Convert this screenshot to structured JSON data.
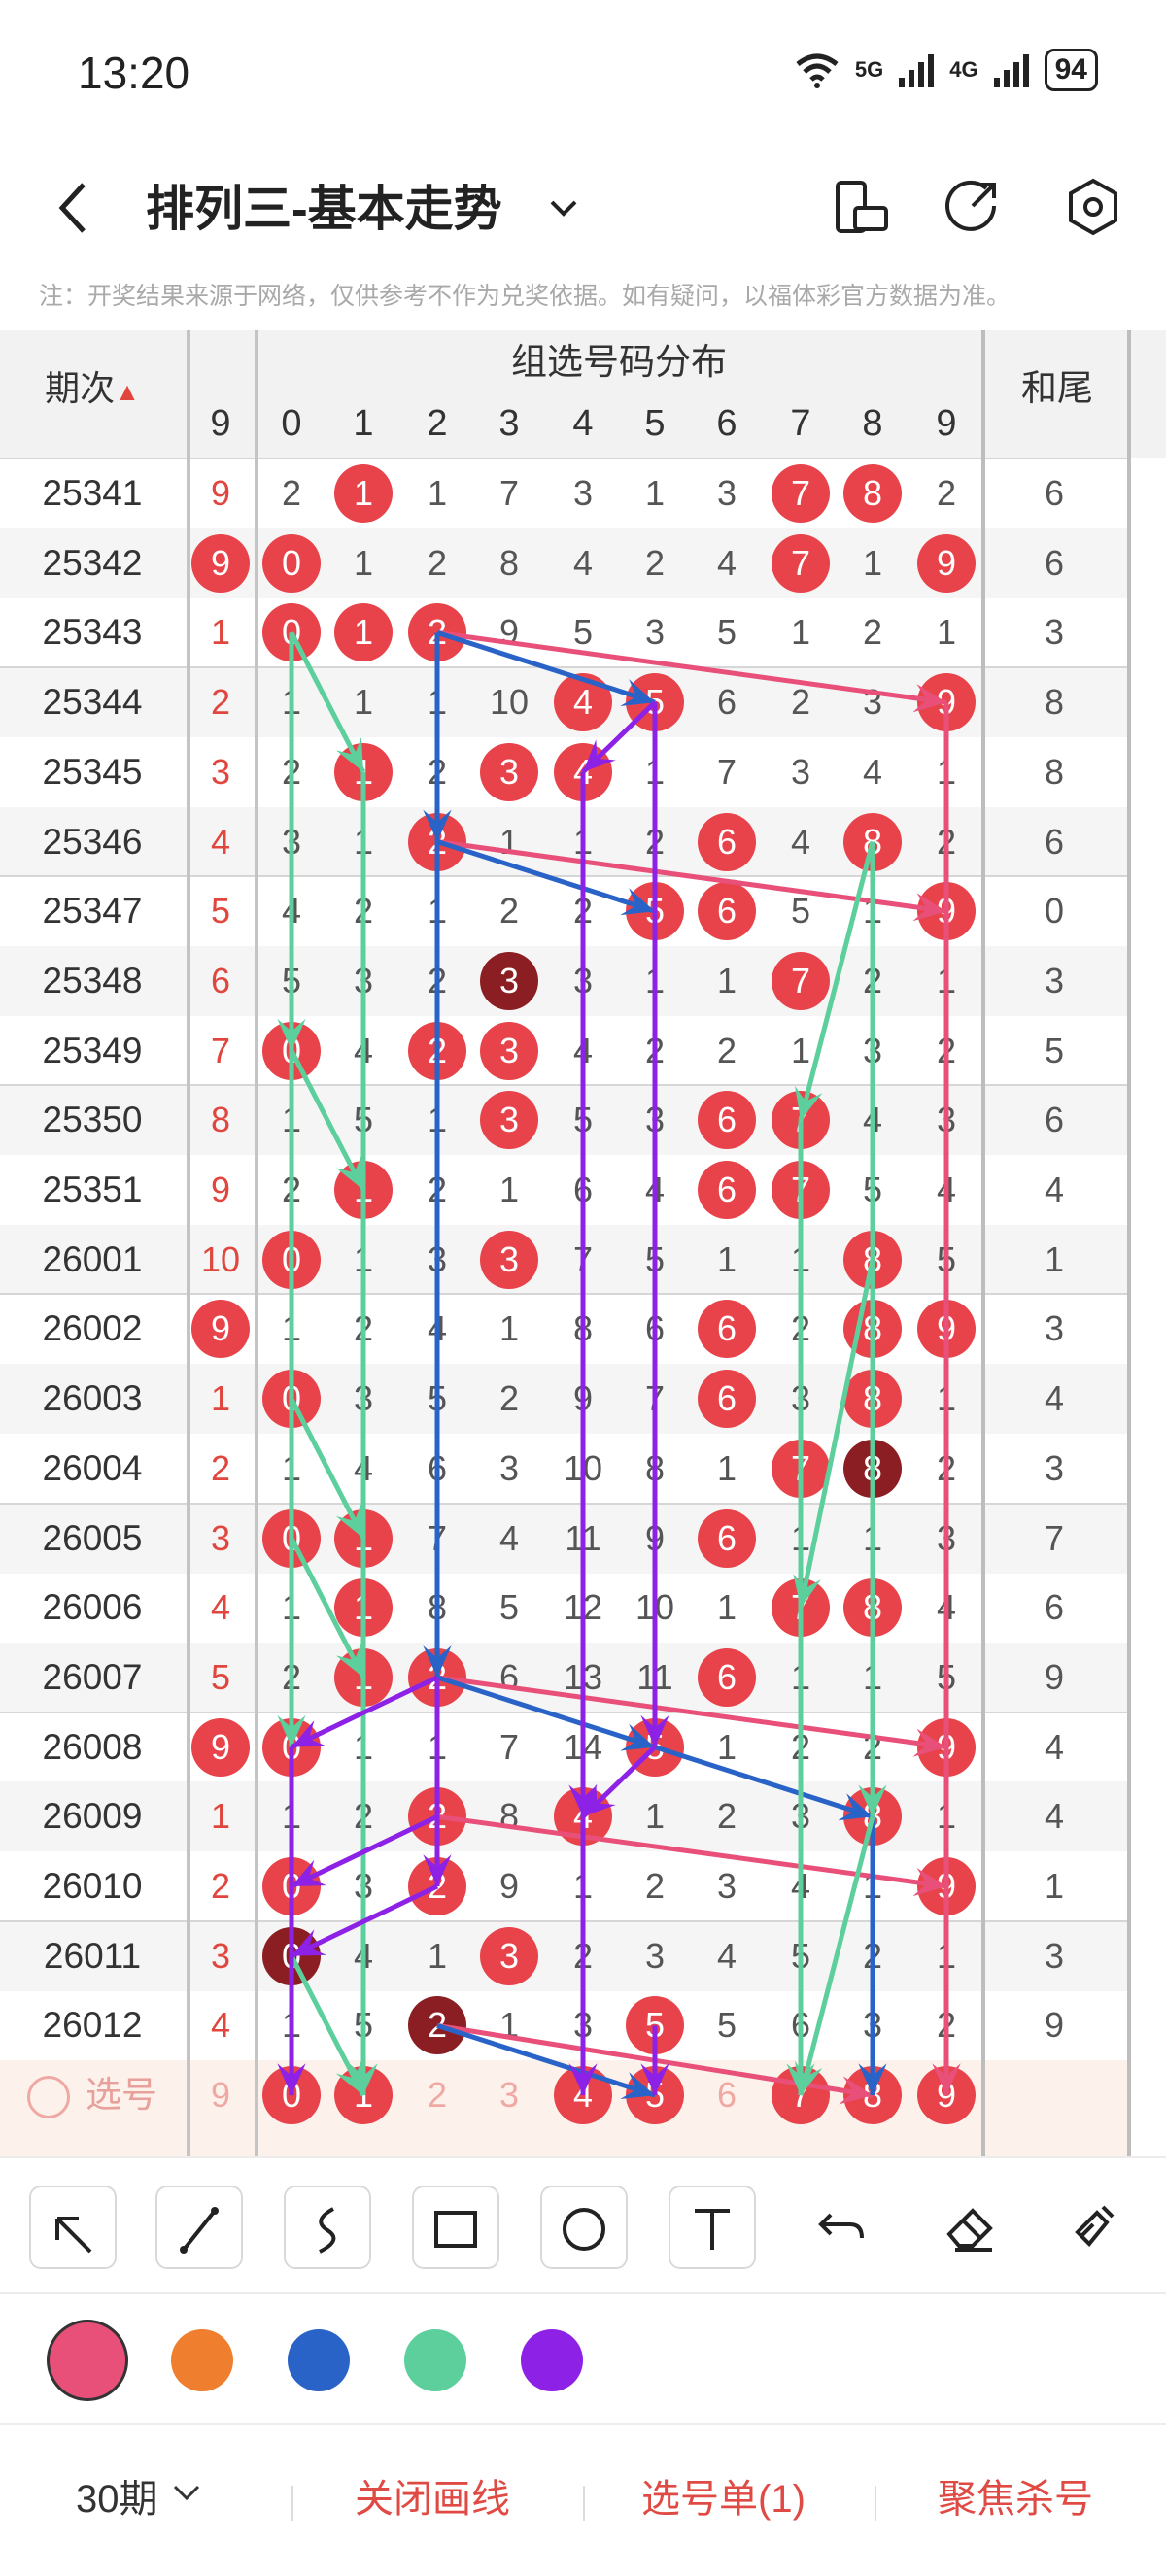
{
  "status": {
    "time": "13:20",
    "network1": "5G",
    "network2": "4G",
    "battery": "94"
  },
  "header": {
    "title": "排列三-基本走势"
  },
  "notice": "注：开奖结果来源于网络，仅供参考不作为兑奖依据。如有疑问，以福体彩官方数据为准。",
  "table": {
    "col_issue": "期次",
    "col_group": "组选号码分布",
    "col_tail": "和尾",
    "miss_header": "9",
    "digits": [
      "0",
      "1",
      "2",
      "3",
      "4",
      "5",
      "6",
      "7",
      "8",
      "9"
    ],
    "select_label": "选号",
    "rows": [
      {
        "issue": "25341",
        "miss": "9",
        "missBall": false,
        "cells": [
          "2",
          "1",
          "1",
          "7",
          "3",
          "1",
          "3",
          "7",
          "8",
          "2"
        ],
        "balls": [
          1,
          7,
          8
        ],
        "tail": "6"
      },
      {
        "issue": "25342",
        "miss": "9",
        "missBall": true,
        "cells": [
          "0",
          "1",
          "2",
          "8",
          "4",
          "2",
          "4",
          "7",
          "1",
          "9"
        ],
        "balls": [
          0,
          7,
          9
        ],
        "tail": "6"
      },
      {
        "issue": "25343",
        "miss": "1",
        "missBall": false,
        "cells": [
          "0",
          "1",
          "2",
          "9",
          "5",
          "3",
          "5",
          "1",
          "2",
          "1"
        ],
        "balls": [
          0,
          1,
          2
        ],
        "tail": "3"
      },
      {
        "issue": "25344",
        "miss": "2",
        "missBall": false,
        "cells": [
          "1",
          "1",
          "1",
          "10",
          "4",
          "5",
          "6",
          "2",
          "3",
          "9"
        ],
        "balls": [
          4,
          5,
          9
        ],
        "tail": "8"
      },
      {
        "issue": "25345",
        "miss": "3",
        "missBall": false,
        "cells": [
          "2",
          "1",
          "2",
          "3",
          "4",
          "1",
          "7",
          "3",
          "4",
          "1"
        ],
        "balls": [
          1,
          3,
          4
        ],
        "tail": "8"
      },
      {
        "issue": "25346",
        "miss": "4",
        "missBall": false,
        "cells": [
          "3",
          "1",
          "2",
          "1",
          "1",
          "2",
          "6",
          "4",
          "8",
          "2"
        ],
        "balls": [
          2,
          6,
          8
        ],
        "tail": "6"
      },
      {
        "issue": "25347",
        "miss": "5",
        "missBall": false,
        "cells": [
          "4",
          "2",
          "1",
          "2",
          "2",
          "5",
          "6",
          "5",
          "1",
          "9"
        ],
        "balls": [
          5,
          6,
          9
        ],
        "tail": "0"
      },
      {
        "issue": "25348",
        "miss": "6",
        "missBall": false,
        "cells": [
          "5",
          "3",
          "2",
          "3",
          "3",
          "1",
          "1",
          "7",
          "2",
          "1"
        ],
        "balls": [
          3,
          7
        ],
        "dark": [
          3
        ],
        "tail": "3"
      },
      {
        "issue": "25349",
        "miss": "7",
        "missBall": false,
        "cells": [
          "0",
          "4",
          "2",
          "3",
          "4",
          "2",
          "2",
          "1",
          "3",
          "2"
        ],
        "balls": [
          0,
          2,
          3
        ],
        "tail": "5"
      },
      {
        "issue": "25350",
        "miss": "8",
        "missBall": false,
        "cells": [
          "1",
          "5",
          "1",
          "3",
          "5",
          "3",
          "6",
          "7",
          "4",
          "3"
        ],
        "balls": [
          3,
          6,
          7
        ],
        "tail": "6"
      },
      {
        "issue": "25351",
        "miss": "9",
        "missBall": false,
        "cells": [
          "2",
          "1",
          "2",
          "1",
          "6",
          "4",
          "6",
          "7",
          "5",
          "4"
        ],
        "balls": [
          1,
          6,
          7
        ],
        "tail": "4"
      },
      {
        "issue": "26001",
        "miss": "10",
        "missBall": false,
        "cells": [
          "0",
          "1",
          "3",
          "3",
          "7",
          "5",
          "1",
          "1",
          "8",
          "5"
        ],
        "balls": [
          0,
          3,
          8
        ],
        "tail": "1"
      },
      {
        "issue": "26002",
        "miss": "9",
        "missBall": true,
        "cells": [
          "1",
          "2",
          "4",
          "1",
          "8",
          "6",
          "6",
          "2",
          "8",
          "9"
        ],
        "balls": [
          6,
          8,
          9
        ],
        "tail": "3"
      },
      {
        "issue": "26003",
        "miss": "1",
        "missBall": false,
        "cells": [
          "0",
          "3",
          "5",
          "2",
          "9",
          "7",
          "6",
          "3",
          "8",
          "1"
        ],
        "balls": [
          0,
          6,
          8
        ],
        "tail": "4"
      },
      {
        "issue": "26004",
        "miss": "2",
        "missBall": false,
        "cells": [
          "1",
          "4",
          "6",
          "3",
          "10",
          "8",
          "1",
          "7",
          "8",
          "2"
        ],
        "balls": [
          7,
          8
        ],
        "dark": [
          8
        ],
        "tail": "3"
      },
      {
        "issue": "26005",
        "miss": "3",
        "missBall": false,
        "cells": [
          "0",
          "1",
          "7",
          "4",
          "11",
          "9",
          "6",
          "1",
          "1",
          "3"
        ],
        "balls": [
          0,
          1,
          6
        ],
        "tail": "7"
      },
      {
        "issue": "26006",
        "miss": "4",
        "missBall": false,
        "cells": [
          "1",
          "1",
          "8",
          "5",
          "12",
          "10",
          "1",
          "7",
          "8",
          "4"
        ],
        "balls": [
          1,
          7,
          8
        ],
        "tail": "6"
      },
      {
        "issue": "26007",
        "miss": "5",
        "missBall": false,
        "cells": [
          "2",
          "1",
          "2",
          "6",
          "13",
          "11",
          "6",
          "1",
          "1",
          "5"
        ],
        "balls": [
          1,
          2,
          6
        ],
        "tail": "9"
      },
      {
        "issue": "26008",
        "miss": "9",
        "missBall": true,
        "cells": [
          "0",
          "1",
          "1",
          "7",
          "14",
          "5",
          "1",
          "2",
          "2",
          "9"
        ],
        "balls": [
          0,
          5,
          9
        ],
        "tail": "4"
      },
      {
        "issue": "26009",
        "miss": "1",
        "missBall": false,
        "cells": [
          "1",
          "2",
          "2",
          "8",
          "4",
          "1",
          "2",
          "3",
          "8",
          "1"
        ],
        "balls": [
          2,
          4,
          8
        ],
        "tail": "4"
      },
      {
        "issue": "26010",
        "miss": "2",
        "missBall": false,
        "cells": [
          "0",
          "3",
          "2",
          "9",
          "1",
          "2",
          "3",
          "4",
          "1",
          "9"
        ],
        "balls": [
          0,
          2,
          9
        ],
        "tail": "1"
      },
      {
        "issue": "26011",
        "miss": "3",
        "missBall": false,
        "cells": [
          "0",
          "4",
          "1",
          "3",
          "2",
          "3",
          "4",
          "5",
          "2",
          "1"
        ],
        "balls": [
          0,
          3
        ],
        "dark": [
          0
        ],
        "tail": "3"
      },
      {
        "issue": "26012",
        "miss": "4",
        "missBall": false,
        "cells": [
          "1",
          "5",
          "2",
          "1",
          "3",
          "5",
          "5",
          "6",
          "3",
          "2"
        ],
        "balls": [
          2,
          5
        ],
        "dark": [
          2
        ],
        "tail": "9"
      }
    ],
    "select_row": {
      "miss": "9",
      "cells": [
        "0",
        "1",
        "2",
        "3",
        "4",
        "5",
        "6",
        "7",
        "8",
        "9"
      ],
      "balls": [
        0,
        1,
        4,
        5,
        7,
        8,
        9
      ]
    }
  },
  "toolbar": {
    "tools": [
      "arrow-tool",
      "line-tool",
      "curve-tool",
      "rect-tool",
      "circle-tool",
      "text-tool",
      "undo-tool",
      "eraser-tool",
      "clear-tool"
    ]
  },
  "colors": [
    "#e8507a",
    "#ef7f2e",
    "#2a63c7",
    "#5ccf9c",
    "#8d22e6"
  ],
  "footer": {
    "period": "30期",
    "close_lines": "关闭画线",
    "pick_list": "选号单(1)",
    "focus_kill": "聚焦杀号"
  }
}
